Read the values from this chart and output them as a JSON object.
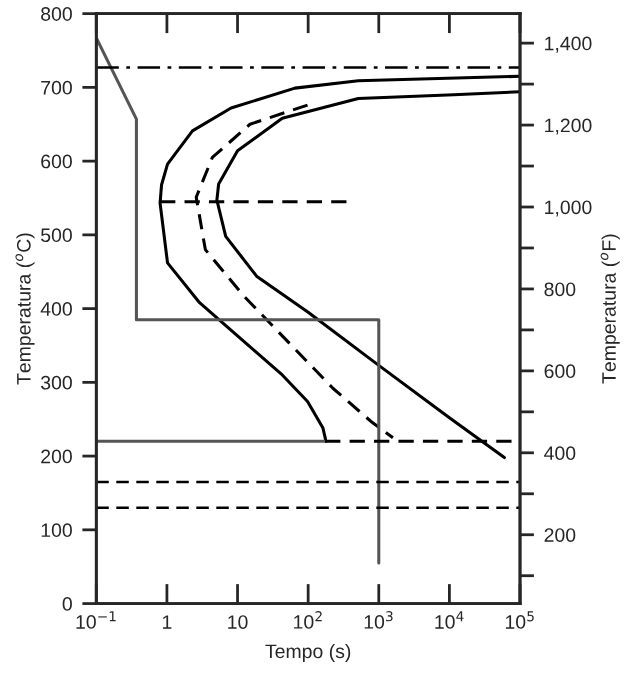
{
  "chart_data": {
    "type": "line",
    "xlabel": "Tempo (s)",
    "ylabel": "Temperatura ($^{o}$C)",
    "y2label": "Temperatura ($^{o}$F)",
    "log": "x",
    "xlim": [
      0.1,
      100000
    ],
    "xticks": [
      {
        "value": 0.1,
        "label": "10$^{−1}$"
      },
      {
        "value": 1,
        "label": "1"
      },
      {
        "value": 10,
        "label": "10"
      },
      {
        "value": 100,
        "label": "10$^{2}$"
      },
      {
        "value": 1000,
        "label": "10$^{3}$"
      },
      {
        "value": 10000,
        "label": "10$^{4}$"
      },
      {
        "value": 100000,
        "label": "10$^{5}$"
      }
    ],
    "ylim": [
      0,
      800
    ],
    "yticks": [
      0,
      100,
      200,
      300,
      400,
      500,
      600,
      700,
      800
    ],
    "y2lim": [
      32,
      1472
    ],
    "y2ticks": [
      {
        "value": 100,
        "label": null
      },
      {
        "value": 200,
        "label": "200"
      },
      {
        "value": 300,
        "label": null
      },
      {
        "value": 400,
        "label": "400"
      },
      {
        "value": 500,
        "label": null
      },
      {
        "value": 600,
        "label": "600"
      },
      {
        "value": 700,
        "label": null
      },
      {
        "value": 800,
        "label": "800"
      },
      {
        "value": 900,
        "label": null
      },
      {
        "value": 1000,
        "label": "1,000"
      },
      {
        "value": 1100,
        "label": null
      },
      {
        "value": 1200,
        "label": "1,200"
      },
      {
        "value": 1300,
        "label": null
      },
      {
        "value": 1400,
        "label": "1,400"
      }
    ],
    "grid": false,
    "marker": "none",
    "series": [
      {
        "color": "#000000",
        "line_style": "solid",
        "x": [
          100000,
          513,
          65,
          8.1,
          2.3,
          1.02,
          0.84,
          0.8,
          1.02,
          2.9,
          10,
          43,
          98,
          162,
          174,
          178
        ],
        "values": [
          715,
          709,
          699,
          672,
          641,
          596,
          568,
          543,
          462,
          408,
          363,
          310,
          274,
          238,
          225,
          220
        ]
      },
      {
        "color": "#000000",
        "line_style": "dashed",
        "x": [
          98,
          15,
          4.4,
          2.6,
          3.5,
          12.3,
          43,
          224,
          776,
          1585
        ],
        "values": [
          676,
          650,
          605,
          551,
          480,
          417,
          363,
          292,
          247,
          225
        ]
      },
      {
        "color": "#000000",
        "line_style": "solid",
        "x": [
          100000,
          11500,
          513,
          43,
          10,
          5.4,
          5.1,
          6.8,
          18.6,
          100,
          1000,
          10000,
          60000
        ],
        "values": [
          694,
          690,
          685,
          658,
          614,
          569,
          547,
          498,
          444,
          395,
          323,
          252,
          198
        ]
      },
      {
        "color": "#555555",
        "line_style": "solid",
        "x": [
          0.1,
          0.37,
          0.37,
          1000,
          1000
        ],
        "values": [
          767,
          657,
          385,
          385,
          55
        ]
      },
      {
        "color": "#555555",
        "line_style": "solid",
        "x": [
          0.1,
          174
        ],
        "values": [
          220,
          220
        ]
      },
      {
        "color": "#000000",
        "line_style": "dashed",
        "x": [
          174,
          100000
        ],
        "values": [
          220,
          220
        ]
      },
      {
        "color": "#000000",
        "line_style": "dashed",
        "x": [
          0.8,
          370
        ],
        "values": [
          545,
          545
        ]
      }
    ],
    "ref_lines": [
      {
        "axis": "y",
        "value": 727,
        "line_style": "dashdot",
        "color": "#000000"
      },
      {
        "axis": "y",
        "value": 165,
        "line_style": "dashed",
        "color": "#000000"
      },
      {
        "axis": "y",
        "value": 130,
        "line_style": "dashed",
        "color": "#000000"
      }
    ]
  }
}
